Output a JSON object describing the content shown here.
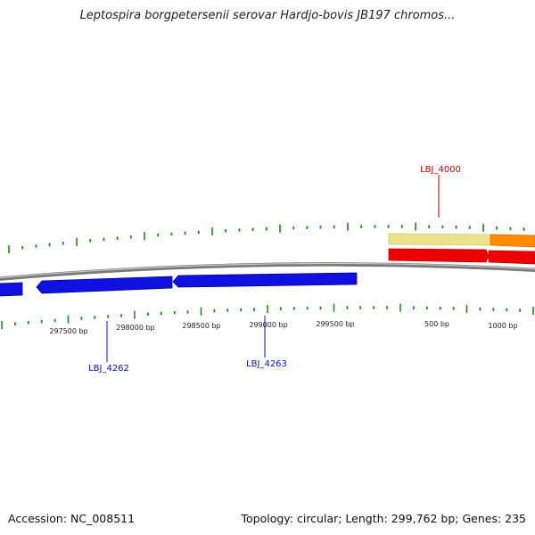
{
  "title": "Leptospira borgpetersenii serovar Hardjo-bovis JB197 chromos...",
  "footer": {
    "accession": "Accession: NC_008511",
    "summary": "Topology: circular; Length: 299,762 bp; Genes: 235"
  },
  "colors": {
    "backbone": "#808080",
    "tick": "#1f8a1f",
    "forward_strand_blue": "#1010e0",
    "reverse_strand_red": "#ee0000",
    "light_yellow_feature": "#eee08a",
    "orange_feature": "#ff8c00",
    "label_blue": "#1010b0",
    "label_red": "#c00000"
  },
  "scale_labels": [
    "297500 bp",
    "298000 bp",
    "298500 bp",
    "299000 bp",
    "299500 bp",
    "500 bp",
    "1000 bp"
  ],
  "feature_labels": [
    {
      "name": "LBJ_4000",
      "color": "red"
    },
    {
      "name": "LBJ_4262",
      "color": "blue"
    },
    {
      "name": "LBJ_4263",
      "color": "blue"
    }
  ]
}
